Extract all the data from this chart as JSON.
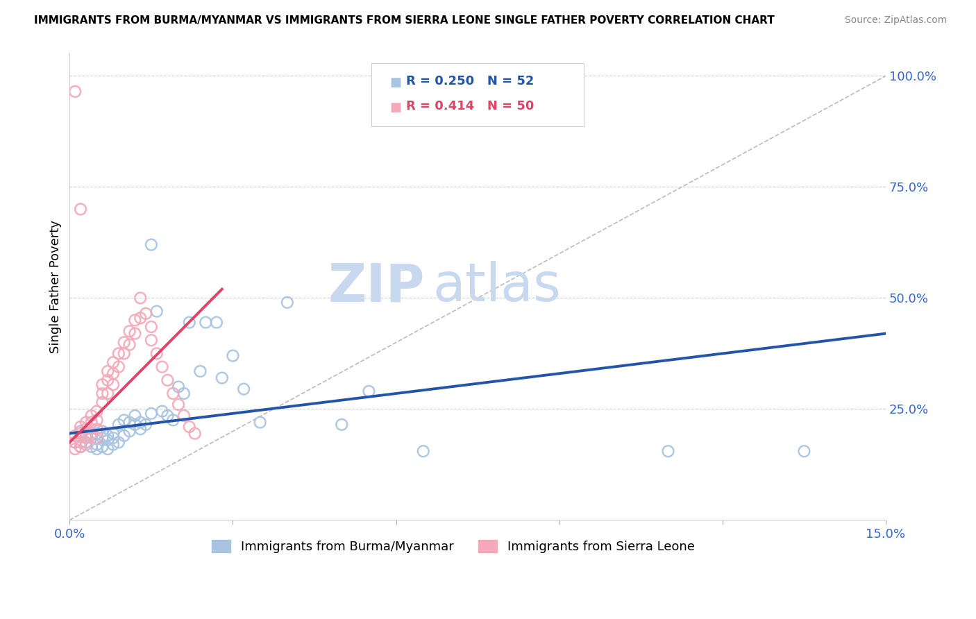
{
  "title": "IMMIGRANTS FROM BURMA/MYANMAR VS IMMIGRANTS FROM SIERRA LEONE SINGLE FATHER POVERTY CORRELATION CHART",
  "source": "Source: ZipAtlas.com",
  "ylabel": "Single Father Poverty",
  "xlim": [
    0.0,
    0.15
  ],
  "ylim": [
    0.0,
    1.05
  ],
  "legend_r_blue": "0.250",
  "legend_n_blue": "52",
  "legend_r_pink": "0.414",
  "legend_n_pink": "50",
  "blue_color": "#a8c4e0",
  "pink_color": "#f4a8b8",
  "blue_line_color": "#2255aa",
  "pink_line_color": "#dd4466",
  "diagonal_color": "#bbbbbb",
  "watermark_zip": "ZIP",
  "watermark_atlas": "atlas",
  "watermark_color": "#c8d8ee",
  "blue_scatter_x": [
    0.001,
    0.002,
    0.002,
    0.003,
    0.003,
    0.004,
    0.004,
    0.005,
    0.005,
    0.005,
    0.006,
    0.006,
    0.006,
    0.007,
    0.007,
    0.007,
    0.008,
    0.008,
    0.008,
    0.009,
    0.009,
    0.01,
    0.01,
    0.011,
    0.011,
    0.012,
    0.012,
    0.013,
    0.013,
    0.014,
    0.015,
    0.015,
    0.016,
    0.017,
    0.018,
    0.019,
    0.02,
    0.021,
    0.022,
    0.024,
    0.025,
    0.027,
    0.028,
    0.03,
    0.032,
    0.035,
    0.04,
    0.05,
    0.055,
    0.065,
    0.11,
    0.135
  ],
  "blue_scatter_y": [
    0.175,
    0.2,
    0.165,
    0.19,
    0.175,
    0.185,
    0.165,
    0.195,
    0.17,
    0.16,
    0.2,
    0.185,
    0.165,
    0.19,
    0.18,
    0.16,
    0.195,
    0.185,
    0.17,
    0.215,
    0.175,
    0.225,
    0.19,
    0.22,
    0.2,
    0.235,
    0.215,
    0.22,
    0.205,
    0.215,
    0.62,
    0.24,
    0.47,
    0.245,
    0.235,
    0.225,
    0.3,
    0.285,
    0.445,
    0.335,
    0.445,
    0.445,
    0.32,
    0.37,
    0.295,
    0.22,
    0.49,
    0.215,
    0.29,
    0.155,
    0.155,
    0.155
  ],
  "pink_scatter_x": [
    0.001,
    0.001,
    0.001,
    0.002,
    0.002,
    0.002,
    0.002,
    0.003,
    0.003,
    0.003,
    0.003,
    0.004,
    0.004,
    0.004,
    0.005,
    0.005,
    0.005,
    0.005,
    0.006,
    0.006,
    0.006,
    0.007,
    0.007,
    0.007,
    0.008,
    0.008,
    0.008,
    0.009,
    0.009,
    0.01,
    0.01,
    0.011,
    0.011,
    0.012,
    0.012,
    0.013,
    0.013,
    0.014,
    0.015,
    0.015,
    0.016,
    0.017,
    0.018,
    0.019,
    0.02,
    0.021,
    0.022,
    0.023,
    0.002,
    0.001
  ],
  "pink_scatter_y": [
    0.19,
    0.175,
    0.16,
    0.21,
    0.195,
    0.175,
    0.165,
    0.22,
    0.205,
    0.185,
    0.17,
    0.235,
    0.22,
    0.195,
    0.245,
    0.225,
    0.205,
    0.185,
    0.305,
    0.285,
    0.265,
    0.335,
    0.315,
    0.285,
    0.355,
    0.33,
    0.305,
    0.375,
    0.345,
    0.4,
    0.375,
    0.425,
    0.395,
    0.45,
    0.42,
    0.455,
    0.5,
    0.465,
    0.435,
    0.405,
    0.375,
    0.345,
    0.315,
    0.285,
    0.26,
    0.235,
    0.21,
    0.195,
    0.7,
    0.965
  ],
  "blue_trend_x": [
    0.0,
    0.15
  ],
  "blue_trend_y": [
    0.195,
    0.42
  ],
  "pink_trend_x": [
    0.0,
    0.028
  ],
  "pink_trend_y": [
    0.175,
    0.52
  ]
}
